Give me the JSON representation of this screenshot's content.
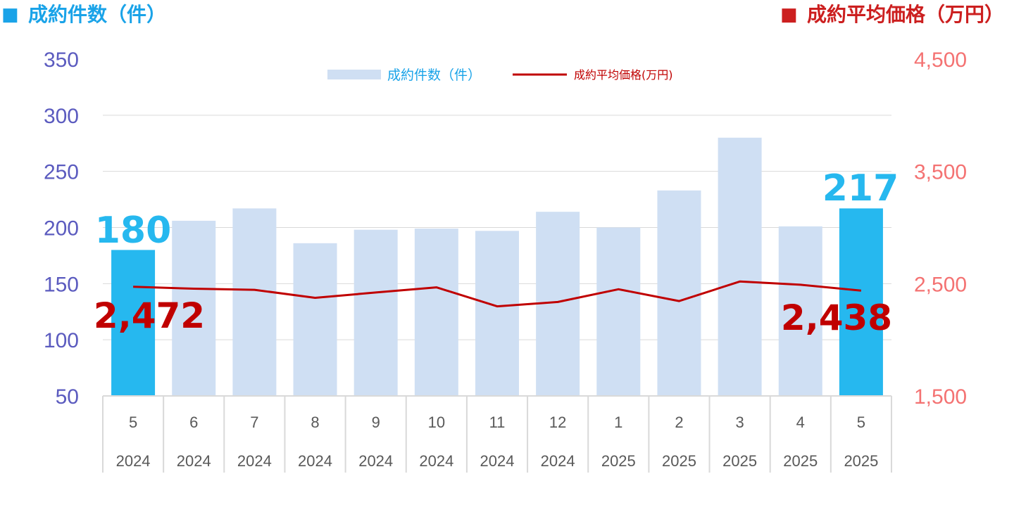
{
  "header": {
    "left_marker": "■",
    "left_title": "成約件数（件）",
    "right_marker": "■",
    "right_title": "成約平均価格（万円）"
  },
  "colors": {
    "left_axis": "#5b5bbf",
    "right_axis": "#f47272",
    "bar": "#cfdff3",
    "bar_highlight": "#26b8ef",
    "line": "#c00000",
    "header_left": "#1aa3e8",
    "header_right": "#cc1f1f",
    "grid": "#d9d9d9",
    "category_text": "#595959"
  },
  "chart_data": {
    "type": "bar",
    "categories": [
      "5",
      "6",
      "7",
      "8",
      "9",
      "10",
      "11",
      "12",
      "1",
      "2",
      "3",
      "4",
      "5"
    ],
    "years": [
      "2024",
      "2024",
      "2024",
      "2024",
      "2024",
      "2024",
      "2024",
      "2024",
      "2025",
      "2025",
      "2025",
      "2025",
      "2025"
    ],
    "series": [
      {
        "name": "成約件数（件）",
        "type": "bar",
        "axis": "left",
        "values": [
          180,
          206,
          217,
          186,
          198,
          199,
          197,
          214,
          200,
          233,
          280,
          201,
          217
        ]
      },
      {
        "name": "成約平均価格(万円)",
        "type": "line",
        "axis": "right",
        "values": [
          2472,
          2455,
          2445,
          2374,
          2421,
          2467,
          2298,
          2337,
          2450,
          2345,
          2519,
          2490,
          2438
        ]
      }
    ],
    "highlight_indices": [
      0,
      12
    ],
    "y_left": {
      "ylim": [
        50,
        350
      ],
      "ticks": [
        "350",
        "300",
        "250",
        "200",
        "150",
        "100",
        "50"
      ]
    },
    "y_right": {
      "ylim": [
        1500,
        4500
      ],
      "ticks": [
        "4,500",
        "3,500",
        "2,500",
        "1,500"
      ]
    },
    "data_labels": {
      "bar_first": "180",
      "bar_last": "217",
      "line_first": "2,472",
      "line_last": "2,438"
    },
    "legend": {
      "placement": "top-center",
      "bar_label": "成約件数（件）",
      "line_label": "成約平均価格(万円)"
    },
    "grid": true
  }
}
